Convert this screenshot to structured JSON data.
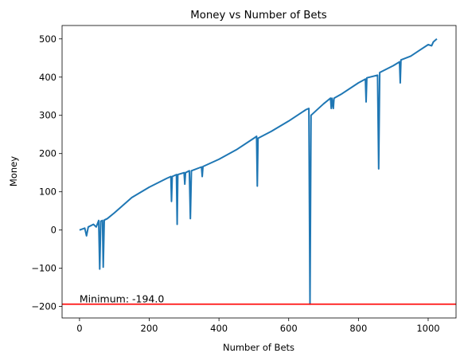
{
  "chart_data": {
    "type": "line",
    "title": "Money vs Number of Bets",
    "xlabel": "Number of Bets",
    "ylabel": "Money",
    "xlim": [
      -50,
      1080
    ],
    "ylim": [
      -230,
      535
    ],
    "xticks": [
      0,
      200,
      400,
      600,
      800,
      1000
    ],
    "yticks": [
      -200,
      -100,
      0,
      100,
      200,
      300,
      400,
      500
    ],
    "grid": false,
    "line_color": "#1f77b4",
    "series": [
      {
        "values": [
          [
            0,
            0
          ],
          [
            15,
            5
          ],
          [
            20,
            -15
          ],
          [
            25,
            8
          ],
          [
            40,
            15
          ],
          [
            48,
            8
          ],
          [
            55,
            25
          ],
          [
            58,
            -102
          ],
          [
            61,
            23
          ],
          [
            66,
            25
          ],
          [
            68,
            -97
          ],
          [
            71,
            26
          ],
          [
            80,
            30
          ],
          [
            100,
            45
          ],
          [
            150,
            85
          ],
          [
            200,
            112
          ],
          [
            250,
            135
          ],
          [
            262,
            140
          ],
          [
            264,
            75
          ],
          [
            266,
            140
          ],
          [
            278,
            145
          ],
          [
            280,
            15
          ],
          [
            282,
            145
          ],
          [
            300,
            150
          ],
          [
            302,
            120
          ],
          [
            304,
            150
          ],
          [
            315,
            155
          ],
          [
            318,
            30
          ],
          [
            321,
            155
          ],
          [
            350,
            165
          ],
          [
            352,
            140
          ],
          [
            354,
            166
          ],
          [
            400,
            185
          ],
          [
            450,
            210
          ],
          [
            500,
            240
          ],
          [
            508,
            245
          ],
          [
            510,
            115
          ],
          [
            512,
            240
          ],
          [
            550,
            258
          ],
          [
            600,
            285
          ],
          [
            650,
            315
          ],
          [
            658,
            318
          ],
          [
            661,
            -194
          ],
          [
            664,
            300
          ],
          [
            700,
            330
          ],
          [
            720,
            345
          ],
          [
            722,
            318
          ],
          [
            724,
            345
          ],
          [
            728,
            318
          ],
          [
            730,
            345
          ],
          [
            750,
            355
          ],
          [
            800,
            385
          ],
          [
            820,
            395
          ],
          [
            822,
            335
          ],
          [
            824,
            398
          ],
          [
            855,
            405
          ],
          [
            858,
            160
          ],
          [
            861,
            412
          ],
          [
            900,
            430
          ],
          [
            918,
            440
          ],
          [
            920,
            385
          ],
          [
            922,
            445
          ],
          [
            950,
            455
          ],
          [
            975,
            470
          ],
          [
            1000,
            485
          ],
          [
            1010,
            482
          ],
          [
            1015,
            492
          ],
          [
            1025,
            500
          ]
        ]
      }
    ],
    "hline": {
      "y": -194.0,
      "color": "#ff0000"
    },
    "annotation": {
      "text": "Minimum: -194.0",
      "x": 0,
      "y": -194.0
    }
  }
}
